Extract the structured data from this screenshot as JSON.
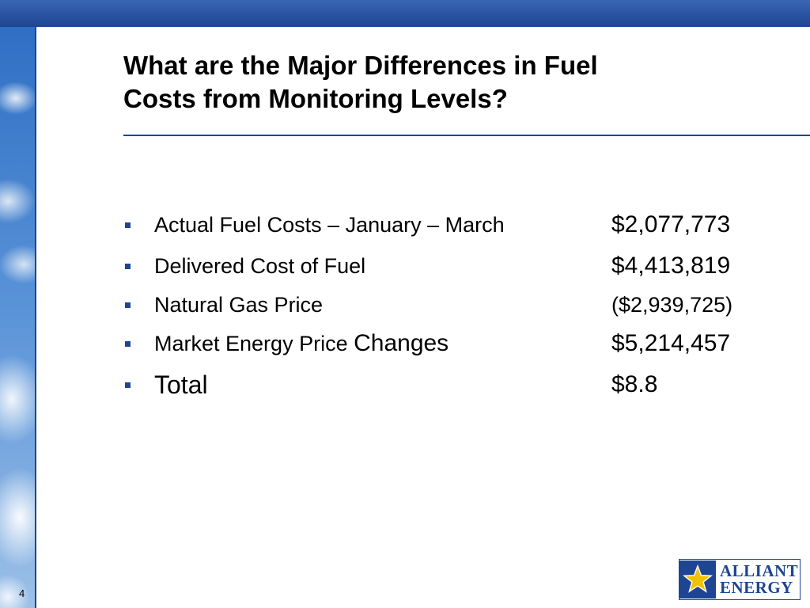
{
  "slide": {
    "title_line1": "What are the Major Differences in Fuel",
    "title_line2": "Costs from Monitoring Levels?",
    "page_number": "4"
  },
  "items": [
    {
      "label": "Actual Fuel Costs – January – March",
      "value": "$2,077,773"
    },
    {
      "label": "Delivered Cost of Fuel",
      "value": "$4,413,819"
    },
    {
      "label": "Natural Gas Price",
      "value": "($2,939,725)"
    },
    {
      "label_part1": "Market Energy Price ",
      "label_part2": "Changes",
      "value": "$5,214,457"
    },
    {
      "label": "Total",
      "value": "$8.8"
    }
  ],
  "logo": {
    "line1": "ALLIANT",
    "line2": "ENERGY",
    "icon": "star-icon",
    "color": "#1d4592",
    "accent": "#f2c200"
  }
}
